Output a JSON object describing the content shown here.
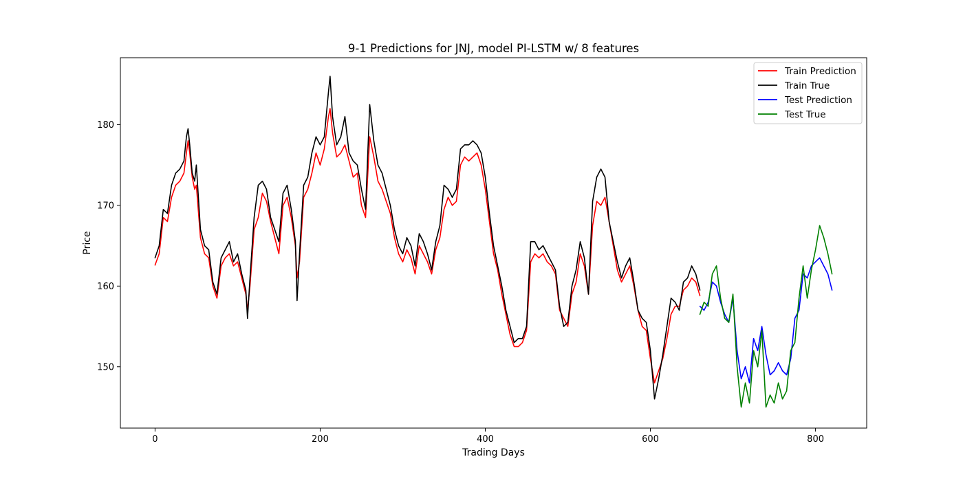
{
  "chart_data": {
    "type": "line",
    "title": "9-1 Predictions for JNJ, model PI-LSTM w/ 8 features",
    "xlabel": "Trading Days",
    "ylabel": "Price",
    "xlim": [
      -42,
      862
    ],
    "ylim": [
      142.4,
      188.3
    ],
    "x_ticks": [
      0,
      200,
      400,
      600,
      800
    ],
    "y_ticks": [
      150,
      160,
      170,
      180
    ],
    "grid": false,
    "legend_position": "top-right",
    "series": [
      {
        "name": "Train Prediction",
        "color": "#ff0000",
        "x": [
          0,
          5,
          10,
          15,
          20,
          25,
          30,
          35,
          38,
          40,
          42,
          45,
          48,
          50,
          55,
          60,
          65,
          70,
          75,
          80,
          85,
          90,
          95,
          100,
          105,
          110,
          112,
          115,
          120,
          125,
          130,
          135,
          140,
          145,
          150,
          155,
          160,
          165,
          170,
          172,
          175,
          180,
          185,
          190,
          195,
          200,
          205,
          210,
          212,
          215,
          220,
          225,
          230,
          235,
          240,
          245,
          250,
          255,
          260,
          265,
          270,
          275,
          280,
          285,
          290,
          295,
          300,
          305,
          310,
          315,
          320,
          325,
          330,
          335,
          340,
          345,
          350,
          355,
          360,
          365,
          370,
          375,
          380,
          385,
          390,
          395,
          400,
          405,
          410,
          415,
          420,
          425,
          430,
          435,
          440,
          445,
          450,
          455,
          460,
          465,
          470,
          475,
          480,
          485,
          490,
          495,
          500,
          505,
          510,
          515,
          520,
          525,
          530,
          535,
          540,
          545,
          550,
          555,
          560,
          565,
          570,
          575,
          580,
          585,
          590,
          595,
          600,
          605,
          610,
          615,
          620,
          625,
          630,
          635,
          640,
          645,
          650,
          655,
          660
        ],
        "y": [
          162.6,
          164.0,
          168.5,
          168.0,
          171.0,
          172.5,
          173.0,
          174.0,
          176.5,
          178.0,
          176.5,
          173.5,
          172.0,
          172.5,
          166.0,
          164.0,
          163.5,
          160.0,
          158.5,
          162.5,
          163.5,
          164.0,
          162.5,
          163.0,
          161.0,
          159.0,
          157.0,
          160.0,
          167.0,
          168.5,
          171.5,
          170.5,
          168.0,
          166.0,
          164.0,
          170.0,
          171.0,
          168.5,
          165.0,
          161.0,
          163.0,
          171.0,
          172.0,
          174.0,
          176.5,
          175.0,
          177.0,
          181.0,
          182.0,
          179.0,
          176.0,
          176.5,
          177.5,
          175.5,
          173.5,
          174.0,
          170.0,
          168.5,
          178.5,
          176.0,
          173.0,
          172.0,
          170.5,
          169.0,
          166.0,
          164.0,
          163.0,
          164.5,
          163.5,
          161.5,
          165.0,
          164.0,
          163.0,
          161.5,
          164.5,
          166.0,
          169.5,
          171.0,
          170.0,
          170.5,
          175.0,
          176.0,
          175.5,
          176.0,
          176.5,
          175.0,
          172.0,
          168.0,
          164.0,
          162.0,
          159.0,
          156.5,
          154.0,
          152.5,
          152.5,
          153.0,
          154.5,
          163.0,
          164.0,
          163.5,
          164.0,
          163.0,
          162.5,
          161.5,
          157.0,
          156.0,
          155.0,
          159.0,
          160.5,
          164.0,
          162.5,
          159.0,
          167.5,
          170.5,
          170.0,
          171.0,
          168.0,
          165.0,
          162.0,
          160.5,
          161.5,
          162.5,
          160.0,
          157.0,
          155.0,
          154.5,
          151.0,
          148.0,
          149.5,
          151.0,
          153.5,
          156.5,
          157.5,
          157.5,
          159.5,
          160.0,
          161.0,
          160.5,
          158.8
        ]
      },
      {
        "name": "Train True",
        "color": "#000000",
        "x": [
          0,
          5,
          10,
          15,
          20,
          25,
          30,
          35,
          38,
          40,
          42,
          45,
          48,
          50,
          55,
          60,
          65,
          70,
          75,
          80,
          85,
          90,
          95,
          100,
          105,
          110,
          112,
          115,
          120,
          125,
          130,
          135,
          140,
          145,
          150,
          155,
          160,
          165,
          170,
          172,
          175,
          180,
          185,
          190,
          195,
          200,
          205,
          210,
          212,
          215,
          220,
          225,
          230,
          235,
          240,
          245,
          250,
          255,
          260,
          265,
          270,
          275,
          280,
          285,
          290,
          295,
          300,
          305,
          310,
          315,
          320,
          325,
          330,
          335,
          340,
          345,
          350,
          355,
          360,
          365,
          370,
          375,
          380,
          385,
          390,
          395,
          400,
          405,
          410,
          415,
          420,
          425,
          430,
          435,
          440,
          445,
          450,
          455,
          460,
          465,
          470,
          475,
          480,
          485,
          490,
          495,
          500,
          505,
          510,
          515,
          520,
          525,
          530,
          535,
          540,
          545,
          550,
          555,
          560,
          565,
          570,
          575,
          580,
          585,
          590,
          595,
          600,
          605,
          610,
          615,
          620,
          625,
          630,
          635,
          640,
          645,
          650,
          655,
          660
        ],
        "y": [
          163.5,
          165.0,
          169.5,
          169.0,
          172.5,
          174.0,
          174.5,
          175.5,
          178.5,
          179.5,
          177.5,
          174.0,
          173.0,
          175.0,
          167.0,
          165.0,
          164.5,
          160.5,
          159.0,
          163.5,
          164.5,
          165.5,
          163.0,
          164.0,
          161.5,
          159.5,
          156.0,
          161.0,
          168.5,
          172.5,
          173.0,
          172.0,
          168.5,
          167.0,
          165.5,
          171.5,
          172.5,
          169.5,
          165.5,
          158.2,
          164.0,
          172.5,
          173.5,
          176.5,
          178.5,
          177.5,
          178.5,
          184.0,
          186.0,
          181.0,
          177.5,
          178.5,
          181.0,
          176.5,
          175.5,
          175.0,
          172.0,
          169.5,
          182.5,
          178.0,
          175.0,
          174.0,
          172.0,
          170.0,
          167.0,
          165.0,
          164.0,
          166.0,
          165.0,
          162.5,
          166.5,
          165.5,
          164.0,
          162.0,
          165.5,
          167.5,
          172.5,
          172.0,
          171.0,
          172.0,
          177.0,
          177.5,
          177.5,
          178.0,
          177.5,
          176.5,
          173.5,
          169.0,
          165.0,
          162.5,
          160.0,
          157.0,
          155.0,
          153.0,
          153.5,
          153.5,
          155.0,
          165.5,
          165.5,
          164.5,
          165.0,
          164.0,
          163.0,
          162.0,
          157.5,
          155.0,
          155.5,
          160.0,
          162.0,
          165.5,
          163.5,
          159.0,
          170.5,
          173.5,
          174.5,
          173.5,
          168.0,
          165.5,
          163.0,
          161.0,
          162.5,
          163.5,
          160.5,
          157.0,
          156.0,
          155.5,
          152.0,
          146.0,
          148.5,
          151.5,
          155.0,
          158.5,
          158.0,
          157.0,
          160.5,
          161.0,
          162.5,
          161.5,
          159.5
        ]
      },
      {
        "name": "Test Prediction",
        "color": "#0000ff",
        "x": [
          660,
          665,
          670,
          675,
          680,
          685,
          690,
          695,
          700,
          705,
          710,
          715,
          720,
          725,
          730,
          735,
          740,
          745,
          750,
          755,
          760,
          765,
          770,
          775,
          780,
          785,
          790,
          795,
          800,
          805,
          810,
          815,
          820
        ],
        "y": [
          157.5,
          157.0,
          158.0,
          160.5,
          160.0,
          158.0,
          156.5,
          155.5,
          158.5,
          152.0,
          148.5,
          150.0,
          148.0,
          153.5,
          152.0,
          155.0,
          151.5,
          149.0,
          149.5,
          150.5,
          149.5,
          149.0,
          151.0,
          156.0,
          157.0,
          161.5,
          161.0,
          162.5,
          163.0,
          163.5,
          162.5,
          161.5,
          159.5
        ]
      },
      {
        "name": "Test True",
        "color": "#008000",
        "x": [
          660,
          665,
          670,
          675,
          680,
          685,
          690,
          695,
          700,
          705,
          710,
          715,
          720,
          725,
          730,
          735,
          740,
          745,
          750,
          755,
          760,
          765,
          770,
          775,
          780,
          785,
          790,
          795,
          800,
          805,
          810,
          815,
          820
        ],
        "y": [
          156.5,
          158.0,
          157.5,
          161.5,
          162.5,
          158.5,
          156.0,
          155.5,
          159.0,
          150.0,
          145.0,
          148.0,
          145.5,
          152.0,
          150.0,
          154.5,
          145.0,
          146.5,
          145.5,
          148.0,
          146.0,
          147.0,
          152.0,
          153.0,
          158.5,
          162.5,
          158.5,
          162.0,
          164.5,
          167.5,
          166.0,
          164.0,
          161.5
        ]
      }
    ]
  }
}
